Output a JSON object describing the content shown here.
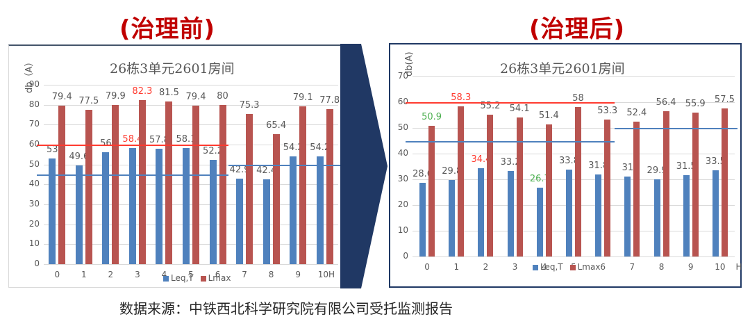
{
  "headings": {
    "before": "(治理前)",
    "after": "(治理后)"
  },
  "source_note": "数据来源：中铁西北科学研究院有限公司受托监测报告",
  "colors": {
    "leq": "#4f81bd",
    "lmax": "#b85450",
    "red_line": "#ff3b30",
    "blue_line": "#4f81bd",
    "heading": "#c00000",
    "arrow": "#203864",
    "highlight_red": "#ff3b30",
    "highlight_green": "#4caf50"
  },
  "chart_data": [
    {
      "type": "bar",
      "title": "26栋3单元2601房间",
      "ylabel": "db（A）",
      "xlabel": "H",
      "ylim": [
        0,
        90
      ],
      "yticks": [
        0,
        10,
        20,
        30,
        40,
        50,
        60,
        70,
        80,
        90
      ],
      "categories": [
        "0",
        "1",
        "2",
        "3",
        "4",
        "5",
        "6",
        "7",
        "8",
        "9",
        "10"
      ],
      "xtick_labels": [
        "0",
        "1",
        "2",
        "3",
        "4",
        "5",
        "6",
        "7",
        "8",
        "9",
        "10H"
      ],
      "series": [
        {
          "name": "Leq,T",
          "values": [
            53,
            49.6,
            56,
            58.4,
            57.8,
            58.1,
            52.2,
            42.9,
            42.4,
            54.2,
            54.2
          ]
        },
        {
          "name": "Lmax",
          "values": [
            79.4,
            77.5,
            79.9,
            82.3,
            81.5,
            79.4,
            80,
            75.3,
            65.4,
            79.1,
            77.8
          ]
        }
      ],
      "highlighted_labels": [
        {
          "series": "Leq,T",
          "index": 3,
          "color": "red"
        },
        {
          "series": "Lmax",
          "index": 3,
          "color": "red"
        }
      ],
      "reference_lines": [
        {
          "y": 60,
          "color": "red",
          "from_index": 0,
          "to_index": 6
        },
        {
          "y": 45,
          "color": "blue",
          "from_index": 0,
          "to_index": 6
        },
        {
          "y": 50,
          "color": "blue",
          "from_index": 7,
          "to_index": 10
        }
      ],
      "legend": {
        "position": "bottom",
        "entries": [
          "Leq,T",
          "Lmax"
        ]
      },
      "grid": true
    },
    {
      "type": "bar",
      "title": "26栋3单元2601房间",
      "ylabel": "db(A)",
      "xlabel": "H",
      "ylim": [
        0,
        70
      ],
      "yticks": [
        0,
        10,
        20,
        30,
        40,
        50,
        60,
        70
      ],
      "categories": [
        "0",
        "1",
        "2",
        "3",
        "4",
        "5",
        "6",
        "7",
        "8",
        "9",
        "10"
      ],
      "xtick_labels": [
        "0",
        "1",
        "2",
        "3",
        "4",
        "5",
        "6",
        "7",
        "8",
        "9",
        "10"
      ],
      "series": [
        {
          "name": "Leq,T",
          "values": [
            28.6,
            29.8,
            34.4,
            33.2,
            26.7,
            33.8,
            31.8,
            31,
            29.9,
            31.5,
            33.5
          ]
        },
        {
          "name": "Lmax",
          "values": [
            50.9,
            58.3,
            55.2,
            54.1,
            51.4,
            58,
            53.3,
            52.4,
            56.4,
            55.9,
            57.5
          ]
        }
      ],
      "highlighted_labels": [
        {
          "series": "Lmax",
          "index": 0,
          "color": "green"
        },
        {
          "series": "Lmax",
          "index": 1,
          "color": "red"
        },
        {
          "series": "Leq,T",
          "index": 2,
          "color": "red"
        },
        {
          "series": "Leq,T",
          "index": 4,
          "color": "green"
        }
      ],
      "reference_lines": [
        {
          "y": 60,
          "color": "red",
          "from_index": 0,
          "to_index": 6
        },
        {
          "y": 45,
          "color": "blue",
          "from_index": 0,
          "to_index": 6
        },
        {
          "y": 50,
          "color": "blue",
          "from_index": 7,
          "to_index": 10
        }
      ],
      "legend": {
        "position": "bottom",
        "entries": [
          "Leq,T",
          "Lmax"
        ]
      },
      "grid": true
    }
  ]
}
